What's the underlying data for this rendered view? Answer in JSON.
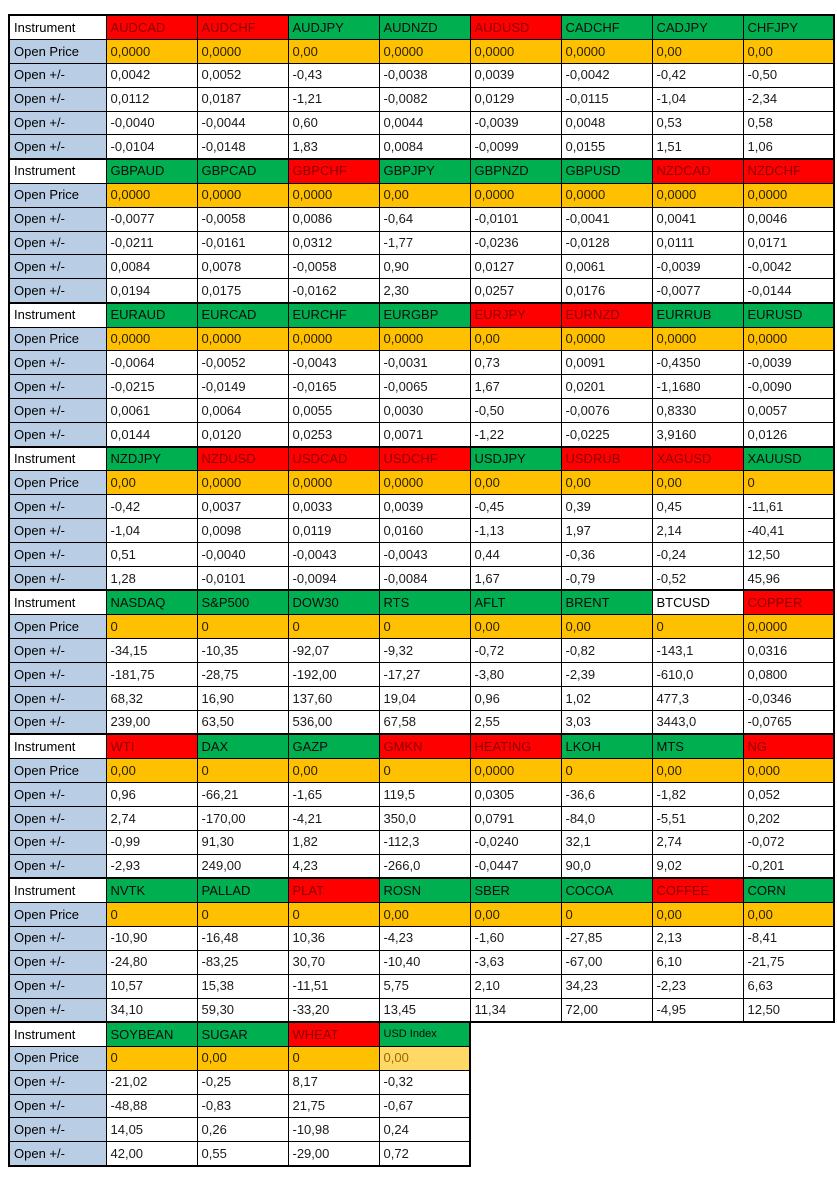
{
  "colors": {
    "green": "#00b050",
    "red": "#ff0000",
    "amber": "#ffc000",
    "light_amber": "#ffd966",
    "label_blue": "#b9cde5",
    "red_text": "#8b0000"
  },
  "row_labels": {
    "instrument": "Instrument",
    "open_price": "Open Price",
    "open_change": "Open +/-"
  },
  "blocks": [
    {
      "columns": [
        {
          "name": "AUDCAD",
          "state": "red",
          "open_price": "0,0000",
          "changes": [
            "0,0042",
            "0,0112",
            "-0,0040",
            "-0,0104"
          ]
        },
        {
          "name": "AUDCHF",
          "state": "red",
          "open_price": "0,0000",
          "changes": [
            "0,0052",
            "0,0187",
            "-0,0044",
            "-0,0148"
          ]
        },
        {
          "name": "AUDJPY",
          "state": "green",
          "open_price": "0,00",
          "changes": [
            "-0,43",
            "-1,21",
            "0,60",
            "1,83"
          ]
        },
        {
          "name": "AUDNZD",
          "state": "green",
          "open_price": "0,0000",
          "changes": [
            "-0,0038",
            "-0,0082",
            "0,0044",
            "0,0084"
          ]
        },
        {
          "name": "AUDUSD",
          "state": "red",
          "open_price": "0,0000",
          "changes": [
            "0,0039",
            "0,0129",
            "-0,0039",
            "-0,0099"
          ]
        },
        {
          "name": "CADCHF",
          "state": "green",
          "open_price": "0,0000",
          "changes": [
            "-0,0042",
            "-0,0115",
            "0,0048",
            "0,0155"
          ]
        },
        {
          "name": "CADJPY",
          "state": "green",
          "open_price": "0,00",
          "changes": [
            "-0,42",
            "-1,04",
            "0,53",
            "1,51"
          ]
        },
        {
          "name": "CHFJPY",
          "state": "green",
          "open_price": "0,00",
          "changes": [
            "-0,50",
            "-2,34",
            "0,58",
            "1,06"
          ]
        }
      ]
    },
    {
      "columns": [
        {
          "name": "GBPAUD",
          "state": "green",
          "open_price": "0,0000",
          "changes": [
            "-0,0077",
            "-0,0211",
            "0,0084",
            "0,0194"
          ]
        },
        {
          "name": "GBPCAD",
          "state": "green",
          "open_price": "0,0000",
          "changes": [
            "-0,0058",
            "-0,0161",
            "0,0078",
            "0,0175"
          ]
        },
        {
          "name": "GBPCHF",
          "state": "red",
          "open_price": "0,0000",
          "changes": [
            "0,0086",
            "0,0312",
            "-0,0058",
            "-0,0162"
          ]
        },
        {
          "name": "GBPJPY",
          "state": "green",
          "open_price": "0,00",
          "changes": [
            "-0,64",
            "-1,77",
            "0,90",
            "2,30"
          ]
        },
        {
          "name": "GBPNZD",
          "state": "green",
          "open_price": "0,0000",
          "changes": [
            "-0,0101",
            "-0,0236",
            "0,0127",
            "0,0257"
          ]
        },
        {
          "name": "GBPUSD",
          "state": "green",
          "open_price": "0,0000",
          "changes": [
            "-0,0041",
            "-0,0128",
            "0,0061",
            "0,0176"
          ]
        },
        {
          "name": "NZDCAD",
          "state": "red",
          "open_price": "0,0000",
          "changes": [
            "0,0041",
            "0,0111",
            "-0,0039",
            "-0,0077"
          ]
        },
        {
          "name": "NZDCHF",
          "state": "red",
          "open_price": "0,0000",
          "changes": [
            "0,0046",
            "0,0171",
            "-0,0042",
            "-0,0144"
          ]
        }
      ]
    },
    {
      "columns": [
        {
          "name": "EURAUD",
          "state": "green",
          "open_price": "0,0000",
          "changes": [
            "-0,0064",
            "-0,0215",
            "0,0061",
            "0,0144"
          ]
        },
        {
          "name": "EURCAD",
          "state": "green",
          "open_price": "0,0000",
          "changes": [
            "-0,0052",
            "-0,0149",
            "0,0064",
            "0,0120"
          ]
        },
        {
          "name": "EURCHF",
          "state": "green",
          "open_price": "0,0000",
          "changes": [
            "-0,0043",
            "-0,0165",
            "0,0055",
            "0,0253"
          ]
        },
        {
          "name": "EURGBP",
          "state": "green",
          "open_price": "0,0000",
          "changes": [
            "-0,0031",
            "-0,0065",
            "0,0030",
            "0,0071"
          ]
        },
        {
          "name": "EURJPY",
          "state": "red",
          "open_price": "0,00",
          "changes": [
            "0,73",
            "1,67",
            "-0,50",
            "-1,22"
          ]
        },
        {
          "name": "EURNZD",
          "state": "red",
          "open_price": "0,0000",
          "changes": [
            "0,0091",
            "0,0201",
            "-0,0076",
            "-0,0225"
          ]
        },
        {
          "name": "EURRUB",
          "state": "green",
          "open_price": "0,0000",
          "changes": [
            "-0,4350",
            "-1,1680",
            "0,8330",
            "3,9160"
          ]
        },
        {
          "name": "EURUSD",
          "state": "green",
          "open_price": "0,0000",
          "changes": [
            "-0,0039",
            "-0,0090",
            "0,0057",
            "0,0126"
          ]
        }
      ]
    },
    {
      "columns": [
        {
          "name": "NZDJPY",
          "state": "green",
          "open_price": "0,00",
          "changes": [
            "-0,42",
            "-1,04",
            "0,51",
            "1,28"
          ]
        },
        {
          "name": "NZDUSD",
          "state": "red",
          "open_price": "0,0000",
          "changes": [
            "0,0037",
            "0,0098",
            "-0,0040",
            "-0,0101"
          ]
        },
        {
          "name": "USDCAD",
          "state": "red",
          "open_price": "0,0000",
          "changes": [
            "0,0033",
            "0,0119",
            "-0,0043",
            "-0,0094"
          ]
        },
        {
          "name": "USDCHF",
          "state": "red",
          "open_price": "0,0000",
          "changes": [
            "0,0039",
            "0,0160",
            "-0,0043",
            "-0,0084"
          ]
        },
        {
          "name": "USDJPY",
          "state": "green",
          "open_price": "0,00",
          "changes": [
            "-0,45",
            "-1,13",
            "0,44",
            "1,67"
          ]
        },
        {
          "name": "USDRUB",
          "state": "red",
          "open_price": "0,00",
          "changes": [
            "0,39",
            "1,97",
            "-0,36",
            "-0,79"
          ]
        },
        {
          "name": "XAGUSD",
          "state": "red",
          "open_price": "0,00",
          "changes": [
            "0,45",
            "2,14",
            "-0,24",
            "-0,52"
          ]
        },
        {
          "name": "XAUUSD",
          "state": "green",
          "open_price": "0",
          "changes": [
            "-11,61",
            "-40,41",
            "12,50",
            "45,96"
          ]
        }
      ]
    },
    {
      "columns": [
        {
          "name": "NASDAQ",
          "state": "green",
          "open_price": "0",
          "changes": [
            "-34,15",
            "-181,75",
            "68,32",
            "239,00"
          ]
        },
        {
          "name": "S&P500",
          "state": "green",
          "open_price": "0",
          "changes": [
            "-10,35",
            "-28,75",
            "16,90",
            "63,50"
          ]
        },
        {
          "name": "DOW30",
          "state": "green",
          "open_price": "0",
          "changes": [
            "-92,07",
            "-192,00",
            "137,60",
            "536,00"
          ]
        },
        {
          "name": "RTS",
          "state": "green",
          "open_price": "0",
          "changes": [
            "-9,32",
            "-17,27",
            "19,04",
            "67,58"
          ]
        },
        {
          "name": "AFLT",
          "state": "green",
          "open_price": "0,00",
          "changes": [
            "-0,72",
            "-3,80",
            "0,96",
            "2,55"
          ]
        },
        {
          "name": "BRENT",
          "state": "green",
          "open_price": "0,00",
          "changes": [
            "-0,82",
            "-2,39",
            "1,02",
            "3,03"
          ]
        },
        {
          "name": "BTCUSD",
          "state": "white",
          "open_price": "0",
          "changes": [
            "-143,1",
            "-610,0",
            "477,3",
            "3443,0"
          ]
        },
        {
          "name": "COPPER",
          "state": "red",
          "open_price": "0,0000",
          "changes": [
            "0,0316",
            "0,0800",
            "-0,0346",
            "-0,0765"
          ]
        }
      ]
    },
    {
      "columns": [
        {
          "name": "WTI",
          "state": "red",
          "open_price": "0,00",
          "changes": [
            "0,96",
            "2,74",
            "-0,99",
            "-2,93"
          ]
        },
        {
          "name": "DAX",
          "state": "green",
          "open_price": "0",
          "changes": [
            "-66,21",
            "-170,00",
            "91,30",
            "249,00"
          ]
        },
        {
          "name": "GAZP",
          "state": "green",
          "open_price": "0,00",
          "changes": [
            "-1,65",
            "-4,21",
            "1,82",
            "4,23"
          ]
        },
        {
          "name": "GMKN",
          "state": "red",
          "open_price": "0",
          "changes": [
            "119,5",
            "350,0",
            "-112,3",
            "-266,0"
          ]
        },
        {
          "name": "HEATING",
          "state": "red",
          "open_price": "0,0000",
          "changes": [
            "0,0305",
            "0,0791",
            "-0,0240",
            "-0,0447"
          ]
        },
        {
          "name": "LKOH",
          "state": "green",
          "open_price": "0",
          "changes": [
            "-36,6",
            "-84,0",
            "32,1",
            "90,0"
          ]
        },
        {
          "name": "MTS",
          "state": "green",
          "open_price": "0,00",
          "changes": [
            "-1,82",
            "-5,51",
            "2,74",
            "9,02"
          ]
        },
        {
          "name": "NG",
          "state": "red",
          "open_price": "0,000",
          "changes": [
            "0,052",
            "0,202",
            "-0,072",
            "-0,201"
          ]
        }
      ]
    },
    {
      "columns": [
        {
          "name": "NVTK",
          "state": "green",
          "open_price": "0",
          "changes": [
            "-10,90",
            "-24,80",
            "10,57",
            "34,10"
          ]
        },
        {
          "name": "PALLAD",
          "state": "green",
          "open_price": "0",
          "changes": [
            "-16,48",
            "-83,25",
            "15,38",
            "59,30"
          ]
        },
        {
          "name": "PLAT",
          "state": "red",
          "open_price": "0",
          "changes": [
            "10,36",
            "30,70",
            "-11,51",
            "-33,20"
          ]
        },
        {
          "name": "ROSN",
          "state": "green",
          "open_price": "0,00",
          "changes": [
            "-4,23",
            "-10,40",
            "5,75",
            "13,45"
          ]
        },
        {
          "name": "SBER",
          "state": "green",
          "open_price": "0,00",
          "changes": [
            "-1,60",
            "-3,63",
            "2,10",
            "11,34"
          ]
        },
        {
          "name": "COCOA",
          "state": "green",
          "open_price": "0",
          "changes": [
            "-27,85",
            "-67,00",
            "34,23",
            "72,00"
          ]
        },
        {
          "name": "COFFEE",
          "state": "red",
          "open_price": "0,00",
          "changes": [
            "2,13",
            "6,10",
            "-2,23",
            "-4,95"
          ]
        },
        {
          "name": "CORN",
          "state": "green",
          "open_price": "0,00",
          "changes": [
            "-8,41",
            "-21,75",
            "6,63",
            "12,50"
          ]
        }
      ]
    },
    {
      "columns": [
        {
          "name": "SOYBEAN",
          "state": "green",
          "open_price": "0",
          "changes": [
            "-21,02",
            "-48,88",
            "14,05",
            "42,00"
          ]
        },
        {
          "name": "SUGAR",
          "state": "green",
          "open_price": "0,00",
          "changes": [
            "-0,25",
            "-0,83",
            "0,26",
            "0,55"
          ]
        },
        {
          "name": "WHEAT",
          "state": "red",
          "open_price": "0",
          "changes": [
            "8,17",
            "21,75",
            "-10,98",
            "-29,00"
          ]
        },
        {
          "name": "USD Index",
          "state": "green",
          "open_price": "0,00",
          "changes": [
            "-0,32",
            "-0,67",
            "0,24",
            "0,72"
          ],
          "small_header": true,
          "price_variant": "light"
        }
      ]
    }
  ]
}
